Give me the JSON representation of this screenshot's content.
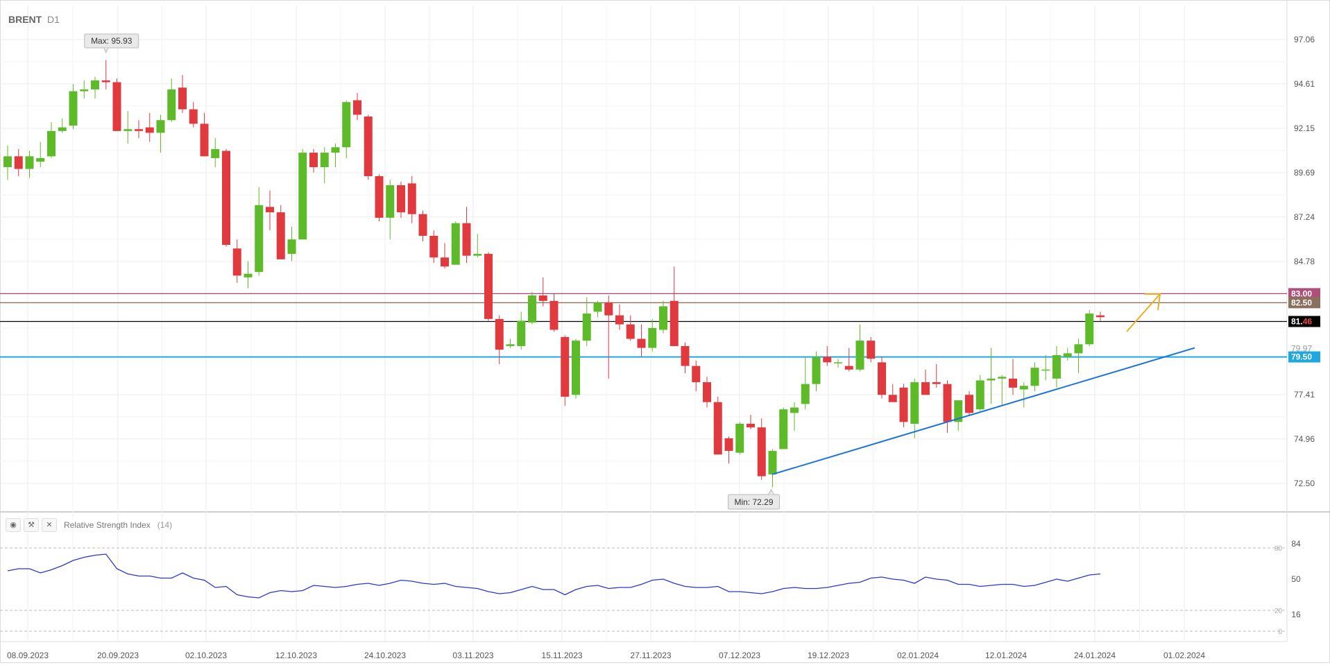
{
  "header": {
    "symbol": "BRENT",
    "timeframe": "D1"
  },
  "indicator": {
    "name": "Relative Strength Index",
    "param": "(14)",
    "icons": [
      "eye-icon",
      "wrench-icon",
      "close-icon"
    ]
  },
  "annotations": {
    "max_label": "Max: 95.93",
    "min_label": "Min: 72.29"
  },
  "price_axis": {
    "ticks": [
      "97.06",
      "94.61",
      "92.15",
      "89.69",
      "87.24",
      "84.78",
      "77.41",
      "74.96",
      "72.50"
    ]
  },
  "price_tags": [
    {
      "label": "83.00",
      "color": "#b0507a"
    },
    {
      "label": "82.50",
      "color": "#8a6e5e"
    },
    {
      "label_main": "81.",
      "label_accent": "46",
      "color": "#000000",
      "accent": "#e8474b"
    },
    {
      "label": "79.50",
      "color": "#1ea8e0"
    },
    {
      "label": "79.97",
      "color": "#999999"
    }
  ],
  "rsi_axis": {
    "ticks": [
      "84",
      "50",
      "16"
    ],
    "levels": [
      "80",
      "20",
      "0"
    ]
  },
  "date_axis": {
    "ticks": [
      "08.09.2023",
      "20.09.2023",
      "02.10.2023",
      "12.10.2023",
      "24.10.2023",
      "03.11.2023",
      "15.11.2023",
      "27.11.2023",
      "07.12.2023",
      "19.12.2023",
      "02.01.2024",
      "12.01.2024",
      "24.01.2024",
      "01.02.2024"
    ]
  },
  "colors": {
    "up": "#5dbb2a",
    "down": "#e0393e",
    "rsi": "#2a35d6",
    "trend": "#1a73d9",
    "arrow": "#e8b020",
    "level_83": "#a8426e",
    "level_825": "#8a6e5e",
    "level_8146": "#000000",
    "level_795": "#1ea8e0"
  },
  "chart_data": {
    "type": "candlestick",
    "price_range": [
      71.2,
      98.2
    ],
    "levels": [
      83.0,
      82.5,
      81.46,
      79.5
    ],
    "trendline": {
      "from": [
        "13.12.2023",
        73.0
      ],
      "to": [
        "30.01.2024",
        80.0
      ]
    },
    "series": [
      {
        "o": 90.0,
        "h": 91.2,
        "l": 89.3,
        "c": 90.6
      },
      {
        "o": 90.6,
        "h": 91.0,
        "l": 89.5,
        "c": 89.9
      },
      {
        "o": 89.9,
        "h": 90.9,
        "l": 89.4,
        "c": 90.6
      },
      {
        "o": 90.3,
        "h": 91.4,
        "l": 90.0,
        "c": 90.5
      },
      {
        "o": 90.6,
        "h": 92.5,
        "l": 90.5,
        "c": 92.0
      },
      {
        "o": 92.0,
        "h": 92.7,
        "l": 91.9,
        "c": 92.2
      },
      {
        "o": 92.3,
        "h": 94.6,
        "l": 92.1,
        "c": 94.2
      },
      {
        "o": 94.2,
        "h": 94.8,
        "l": 93.8,
        "c": 94.3
      },
      {
        "o": 94.3,
        "h": 95.0,
        "l": 93.8,
        "c": 94.8
      },
      {
        "o": 94.8,
        "h": 95.93,
        "l": 94.3,
        "c": 94.7
      },
      {
        "o": 94.7,
        "h": 94.9,
        "l": 92.0,
        "c": 92.0
      },
      {
        "o": 92.0,
        "h": 93.1,
        "l": 91.3,
        "c": 92.1
      },
      {
        "o": 92.1,
        "h": 92.6,
        "l": 91.6,
        "c": 92.0
      },
      {
        "o": 92.2,
        "h": 93.0,
        "l": 91.4,
        "c": 91.9
      },
      {
        "o": 91.9,
        "h": 92.9,
        "l": 90.8,
        "c": 92.6
      },
      {
        "o": 92.6,
        "h": 94.9,
        "l": 92.5,
        "c": 94.3
      },
      {
        "o": 94.4,
        "h": 95.1,
        "l": 93.0,
        "c": 93.2
      },
      {
        "o": 93.2,
        "h": 93.6,
        "l": 92.2,
        "c": 92.4
      },
      {
        "o": 92.4,
        "h": 93.0,
        "l": 90.6,
        "c": 90.6
      },
      {
        "o": 90.5,
        "h": 91.6,
        "l": 90.0,
        "c": 91.0
      },
      {
        "o": 90.9,
        "h": 91.0,
        "l": 85.6,
        "c": 85.7
      },
      {
        "o": 85.5,
        "h": 86.0,
        "l": 83.6,
        "c": 84.0
      },
      {
        "o": 83.9,
        "h": 84.8,
        "l": 83.3,
        "c": 84.1
      },
      {
        "o": 84.2,
        "h": 88.9,
        "l": 84.0,
        "c": 87.9
      },
      {
        "o": 87.8,
        "h": 88.7,
        "l": 86.5,
        "c": 87.5
      },
      {
        "o": 87.5,
        "h": 87.9,
        "l": 84.9,
        "c": 84.9
      },
      {
        "o": 85.2,
        "h": 86.7,
        "l": 84.8,
        "c": 86.0
      },
      {
        "o": 86.0,
        "h": 91.0,
        "l": 86.0,
        "c": 90.8
      },
      {
        "o": 90.8,
        "h": 91.0,
        "l": 89.7,
        "c": 90.0
      },
      {
        "o": 90.0,
        "h": 91.1,
        "l": 89.1,
        "c": 90.8
      },
      {
        "o": 90.8,
        "h": 91.3,
        "l": 90.0,
        "c": 91.1
      },
      {
        "o": 91.1,
        "h": 93.7,
        "l": 90.5,
        "c": 93.6
      },
      {
        "o": 93.7,
        "h": 94.1,
        "l": 92.6,
        "c": 92.9
      },
      {
        "o": 92.8,
        "h": 92.9,
        "l": 89.3,
        "c": 89.5
      },
      {
        "o": 89.5,
        "h": 89.6,
        "l": 87.0,
        "c": 87.2
      },
      {
        "o": 87.2,
        "h": 89.3,
        "l": 86.0,
        "c": 89.0
      },
      {
        "o": 89.0,
        "h": 89.2,
        "l": 87.2,
        "c": 87.5
      },
      {
        "o": 89.1,
        "h": 89.5,
        "l": 86.9,
        "c": 87.4
      },
      {
        "o": 87.4,
        "h": 87.6,
        "l": 85.9,
        "c": 86.2
      },
      {
        "o": 86.2,
        "h": 86.5,
        "l": 84.7,
        "c": 85.0
      },
      {
        "o": 85.0,
        "h": 85.8,
        "l": 84.4,
        "c": 84.5
      },
      {
        "o": 84.6,
        "h": 87.0,
        "l": 84.6,
        "c": 86.9
      },
      {
        "o": 86.9,
        "h": 87.8,
        "l": 84.7,
        "c": 85.1
      },
      {
        "o": 85.1,
        "h": 86.3,
        "l": 85.0,
        "c": 85.2
      },
      {
        "o": 85.2,
        "h": 85.3,
        "l": 81.5,
        "c": 81.6
      },
      {
        "o": 81.6,
        "h": 81.8,
        "l": 79.1,
        "c": 79.9
      },
      {
        "o": 80.1,
        "h": 80.5,
        "l": 80.0,
        "c": 80.2
      },
      {
        "o": 80.1,
        "h": 82.0,
        "l": 79.9,
        "c": 81.5
      },
      {
        "o": 81.4,
        "h": 83.1,
        "l": 81.3,
        "c": 82.9
      },
      {
        "o": 82.9,
        "h": 83.9,
        "l": 82.3,
        "c": 82.6
      },
      {
        "o": 82.6,
        "h": 83.0,
        "l": 80.9,
        "c": 81.0
      },
      {
        "o": 80.6,
        "h": 80.7,
        "l": 76.8,
        "c": 77.3
      },
      {
        "o": 77.4,
        "h": 80.5,
        "l": 77.2,
        "c": 80.4
      },
      {
        "o": 80.4,
        "h": 82.8,
        "l": 80.1,
        "c": 81.9
      },
      {
        "o": 82.0,
        "h": 82.6,
        "l": 81.7,
        "c": 82.5
      },
      {
        "o": 82.5,
        "h": 82.9,
        "l": 78.3,
        "c": 81.8
      },
      {
        "o": 81.8,
        "h": 82.4,
        "l": 81.0,
        "c": 81.3
      },
      {
        "o": 81.3,
        "h": 81.8,
        "l": 80.4,
        "c": 80.5
      },
      {
        "o": 80.5,
        "h": 81.3,
        "l": 79.5,
        "c": 80.0
      },
      {
        "o": 80.0,
        "h": 81.6,
        "l": 79.8,
        "c": 81.1
      },
      {
        "o": 81.0,
        "h": 82.6,
        "l": 80.8,
        "c": 82.3
      },
      {
        "o": 82.6,
        "h": 84.5,
        "l": 80.2,
        "c": 80.1
      },
      {
        "o": 80.1,
        "h": 80.3,
        "l": 78.6,
        "c": 79.0
      },
      {
        "o": 79.0,
        "h": 79.3,
        "l": 77.6,
        "c": 78.1
      },
      {
        "o": 78.1,
        "h": 78.4,
        "l": 76.7,
        "c": 77.0
      },
      {
        "o": 77.0,
        "h": 77.3,
        "l": 74.1,
        "c": 74.1
      },
      {
        "o": 75.0,
        "h": 75.1,
        "l": 73.6,
        "c": 74.3
      },
      {
        "o": 74.2,
        "h": 75.9,
        "l": 74.1,
        "c": 75.8
      },
      {
        "o": 75.8,
        "h": 76.3,
        "l": 75.5,
        "c": 75.6
      },
      {
        "o": 75.6,
        "h": 76.1,
        "l": 72.7,
        "c": 72.9
      },
      {
        "o": 73.0,
        "h": 74.4,
        "l": 72.29,
        "c": 74.3
      },
      {
        "o": 74.4,
        "h": 76.7,
        "l": 74.4,
        "c": 76.6
      },
      {
        "o": 76.4,
        "h": 77.0,
        "l": 75.4,
        "c": 76.7
      },
      {
        "o": 76.9,
        "h": 79.5,
        "l": 76.6,
        "c": 78.0
      },
      {
        "o": 78.0,
        "h": 79.8,
        "l": 77.6,
        "c": 79.5
      },
      {
        "o": 79.5,
        "h": 80.1,
        "l": 79.0,
        "c": 79.2
      },
      {
        "o": 79.2,
        "h": 79.4,
        "l": 78.9,
        "c": 79.2
      },
      {
        "o": 79.0,
        "h": 80.0,
        "l": 78.7,
        "c": 78.8
      },
      {
        "o": 78.8,
        "h": 81.3,
        "l": 78.7,
        "c": 80.4
      },
      {
        "o": 80.4,
        "h": 80.6,
        "l": 79.2,
        "c": 79.4
      },
      {
        "o": 79.2,
        "h": 79.5,
        "l": 77.2,
        "c": 77.4
      },
      {
        "o": 77.4,
        "h": 78.0,
        "l": 77.0,
        "c": 77.0
      },
      {
        "o": 77.8,
        "h": 78.0,
        "l": 75.6,
        "c": 75.9
      },
      {
        "o": 75.8,
        "h": 78.3,
        "l": 75.0,
        "c": 78.1
      },
      {
        "o": 78.1,
        "h": 78.8,
        "l": 77.4,
        "c": 77.4
      },
      {
        "o": 78.1,
        "h": 79.1,
        "l": 77.8,
        "c": 78.0
      },
      {
        "o": 78.0,
        "h": 78.2,
        "l": 75.3,
        "c": 75.9
      },
      {
        "o": 75.9,
        "h": 77.0,
        "l": 75.4,
        "c": 77.1
      },
      {
        "o": 77.4,
        "h": 77.6,
        "l": 76.3,
        "c": 76.4
      },
      {
        "o": 76.6,
        "h": 78.5,
        "l": 76.5,
        "c": 78.2
      },
      {
        "o": 78.2,
        "h": 80.0,
        "l": 76.9,
        "c": 78.3
      },
      {
        "o": 78.3,
        "h": 78.5,
        "l": 76.8,
        "c": 78.4
      },
      {
        "o": 78.3,
        "h": 79.4,
        "l": 77.4,
        "c": 77.8
      },
      {
        "o": 77.7,
        "h": 78.1,
        "l": 76.7,
        "c": 77.9
      },
      {
        "o": 77.9,
        "h": 79.2,
        "l": 77.6,
        "c": 78.9
      },
      {
        "o": 78.8,
        "h": 79.6,
        "l": 78.2,
        "c": 78.8
      },
      {
        "o": 78.3,
        "h": 80.1,
        "l": 77.8,
        "c": 79.6
      },
      {
        "o": 79.5,
        "h": 80.0,
        "l": 79.3,
        "c": 79.7
      },
      {
        "o": 79.7,
        "h": 80.5,
        "l": 78.6,
        "c": 80.2
      },
      {
        "o": 80.2,
        "h": 82.1,
        "l": 80.1,
        "c": 81.9
      },
      {
        "o": 81.8,
        "h": 82.0,
        "l": 81.5,
        "c": 81.7
      }
    ],
    "rsi": [
      58,
      60,
      60,
      56,
      59,
      63,
      68,
      71,
      73,
      74,
      60,
      55,
      53,
      53,
      51,
      51,
      56,
      51,
      49,
      42,
      43,
      35,
      33,
      32,
      37,
      39,
      38,
      39,
      44,
      43,
      42,
      43,
      45,
      46,
      44,
      46,
      49,
      48,
      46,
      45,
      46,
      43,
      42,
      41,
      38,
      36,
      37,
      40,
      43,
      40,
      40,
      35,
      40,
      43,
      44,
      41,
      42,
      42,
      45,
      49,
      50,
      46,
      43,
      42,
      42,
      43,
      38,
      38,
      37,
      36,
      38,
      41,
      42,
      41,
      41,
      42,
      44,
      46,
      47,
      51,
      52,
      50,
      49,
      46,
      52,
      50,
      49,
      45,
      45,
      43,
      44,
      45,
      45,
      43,
      44,
      47,
      50,
      48,
      51,
      54,
      55
    ]
  }
}
